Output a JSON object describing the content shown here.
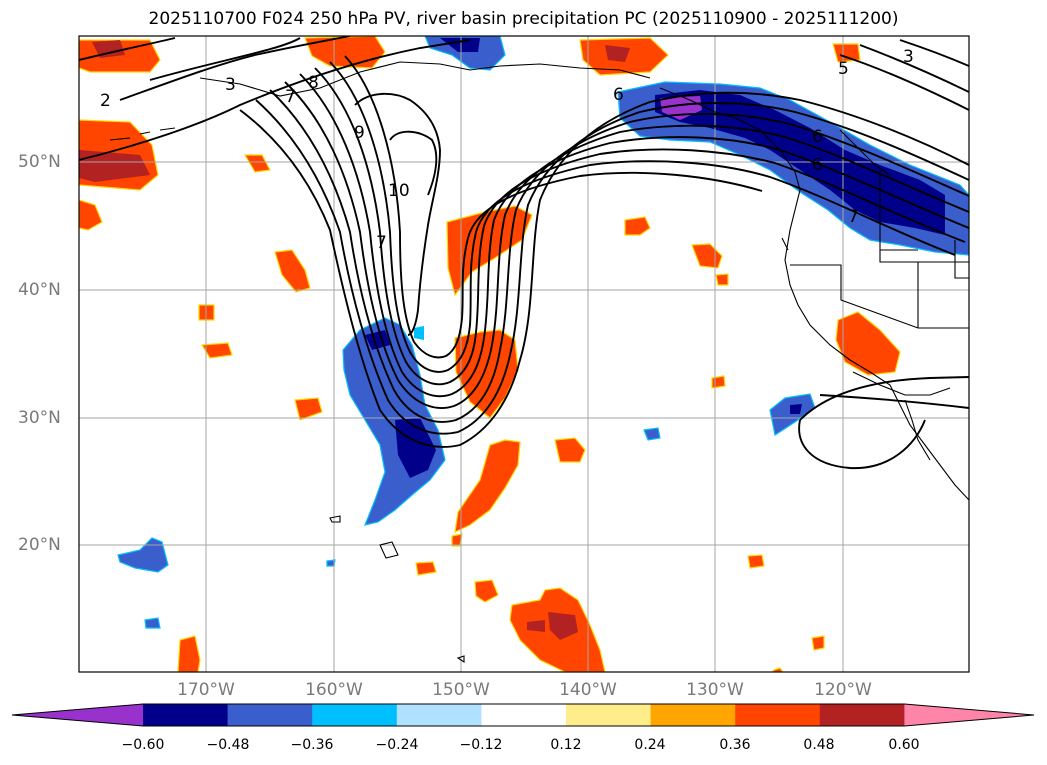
{
  "title": "2025110700 F024 250 hPa PV, river basin precipitation PC (2025110900 - 2025111200)",
  "map": {
    "lat_labels": [
      "50°N",
      "40°N",
      "30°N",
      "20°N"
    ],
    "lon_labels": [
      "170°W",
      "160°W",
      "150°W",
      "140°W",
      "130°W",
      "120°W"
    ],
    "contour_labels": [
      "2",
      "3",
      "6",
      "7",
      "8",
      "9",
      "10",
      "7",
      "3",
      "5",
      "6",
      "6",
      "7"
    ]
  },
  "colorbar": {
    "ticks": [
      "−0.60",
      "−0.48",
      "−0.36",
      "−0.24",
      "−0.12",
      "0.12",
      "0.24",
      "0.36",
      "0.48",
      "0.60"
    ],
    "colors": [
      "#9932cc",
      "#00008b",
      "#3a5fcd",
      "#00bfff",
      "#b0e2ff",
      "#ffffff",
      "#ffec8b",
      "#ffa500",
      "#ff4500",
      "#b22222",
      "#ff85a8"
    ]
  }
}
